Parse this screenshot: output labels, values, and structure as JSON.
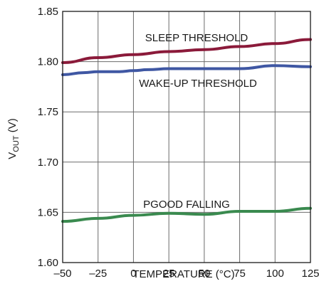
{
  "chart_data": {
    "type": "line",
    "xlabel": "TEMPERATURE (°C)",
    "ylabel_main": "V",
    "ylabel_sub": "OUT",
    "ylabel_unit": " (V)",
    "xlim": [
      -50,
      125
    ],
    "ylim": [
      1.6,
      1.85
    ],
    "x_ticks": [
      -50,
      -25,
      0,
      25,
      50,
      75,
      100,
      125
    ],
    "x_tick_labels": [
      "–50",
      "–25",
      "0",
      "25",
      "50",
      "75",
      "100",
      "125"
    ],
    "y_ticks": [
      1.6,
      1.65,
      1.7,
      1.75,
      1.8,
      1.85
    ],
    "y_tick_labels": [
      "1.60",
      "1.65",
      "1.70",
      "1.75",
      "1.80",
      "1.85"
    ],
    "grid": true,
    "series": [
      {
        "name": "SLEEP THRESHOLD",
        "color": "#8b1a3a",
        "x": [
          -50,
          -25,
          0,
          25,
          50,
          75,
          100,
          125
        ],
        "y": [
          1.799,
          1.804,
          1.807,
          1.81,
          1.812,
          1.815,
          1.818,
          1.822
        ]
      },
      {
        "name": "WAKE-UP THRESHOLD",
        "color": "#3f57a3",
        "x": [
          -50,
          -35,
          -25,
          -10,
          0,
          10,
          25,
          50,
          75,
          100,
          125
        ],
        "y": [
          1.787,
          1.789,
          1.79,
          1.79,
          1.791,
          1.792,
          1.793,
          1.793,
          1.793,
          1.796,
          1.795
        ]
      },
      {
        "name": "PGOOD FALLING",
        "color": "#3a8a4f",
        "x": [
          -50,
          -25,
          0,
          25,
          50,
          75,
          100,
          125
        ],
        "y": [
          1.641,
          1.644,
          1.647,
          1.649,
          1.648,
          1.651,
          1.651,
          1.654
        ]
      }
    ]
  }
}
